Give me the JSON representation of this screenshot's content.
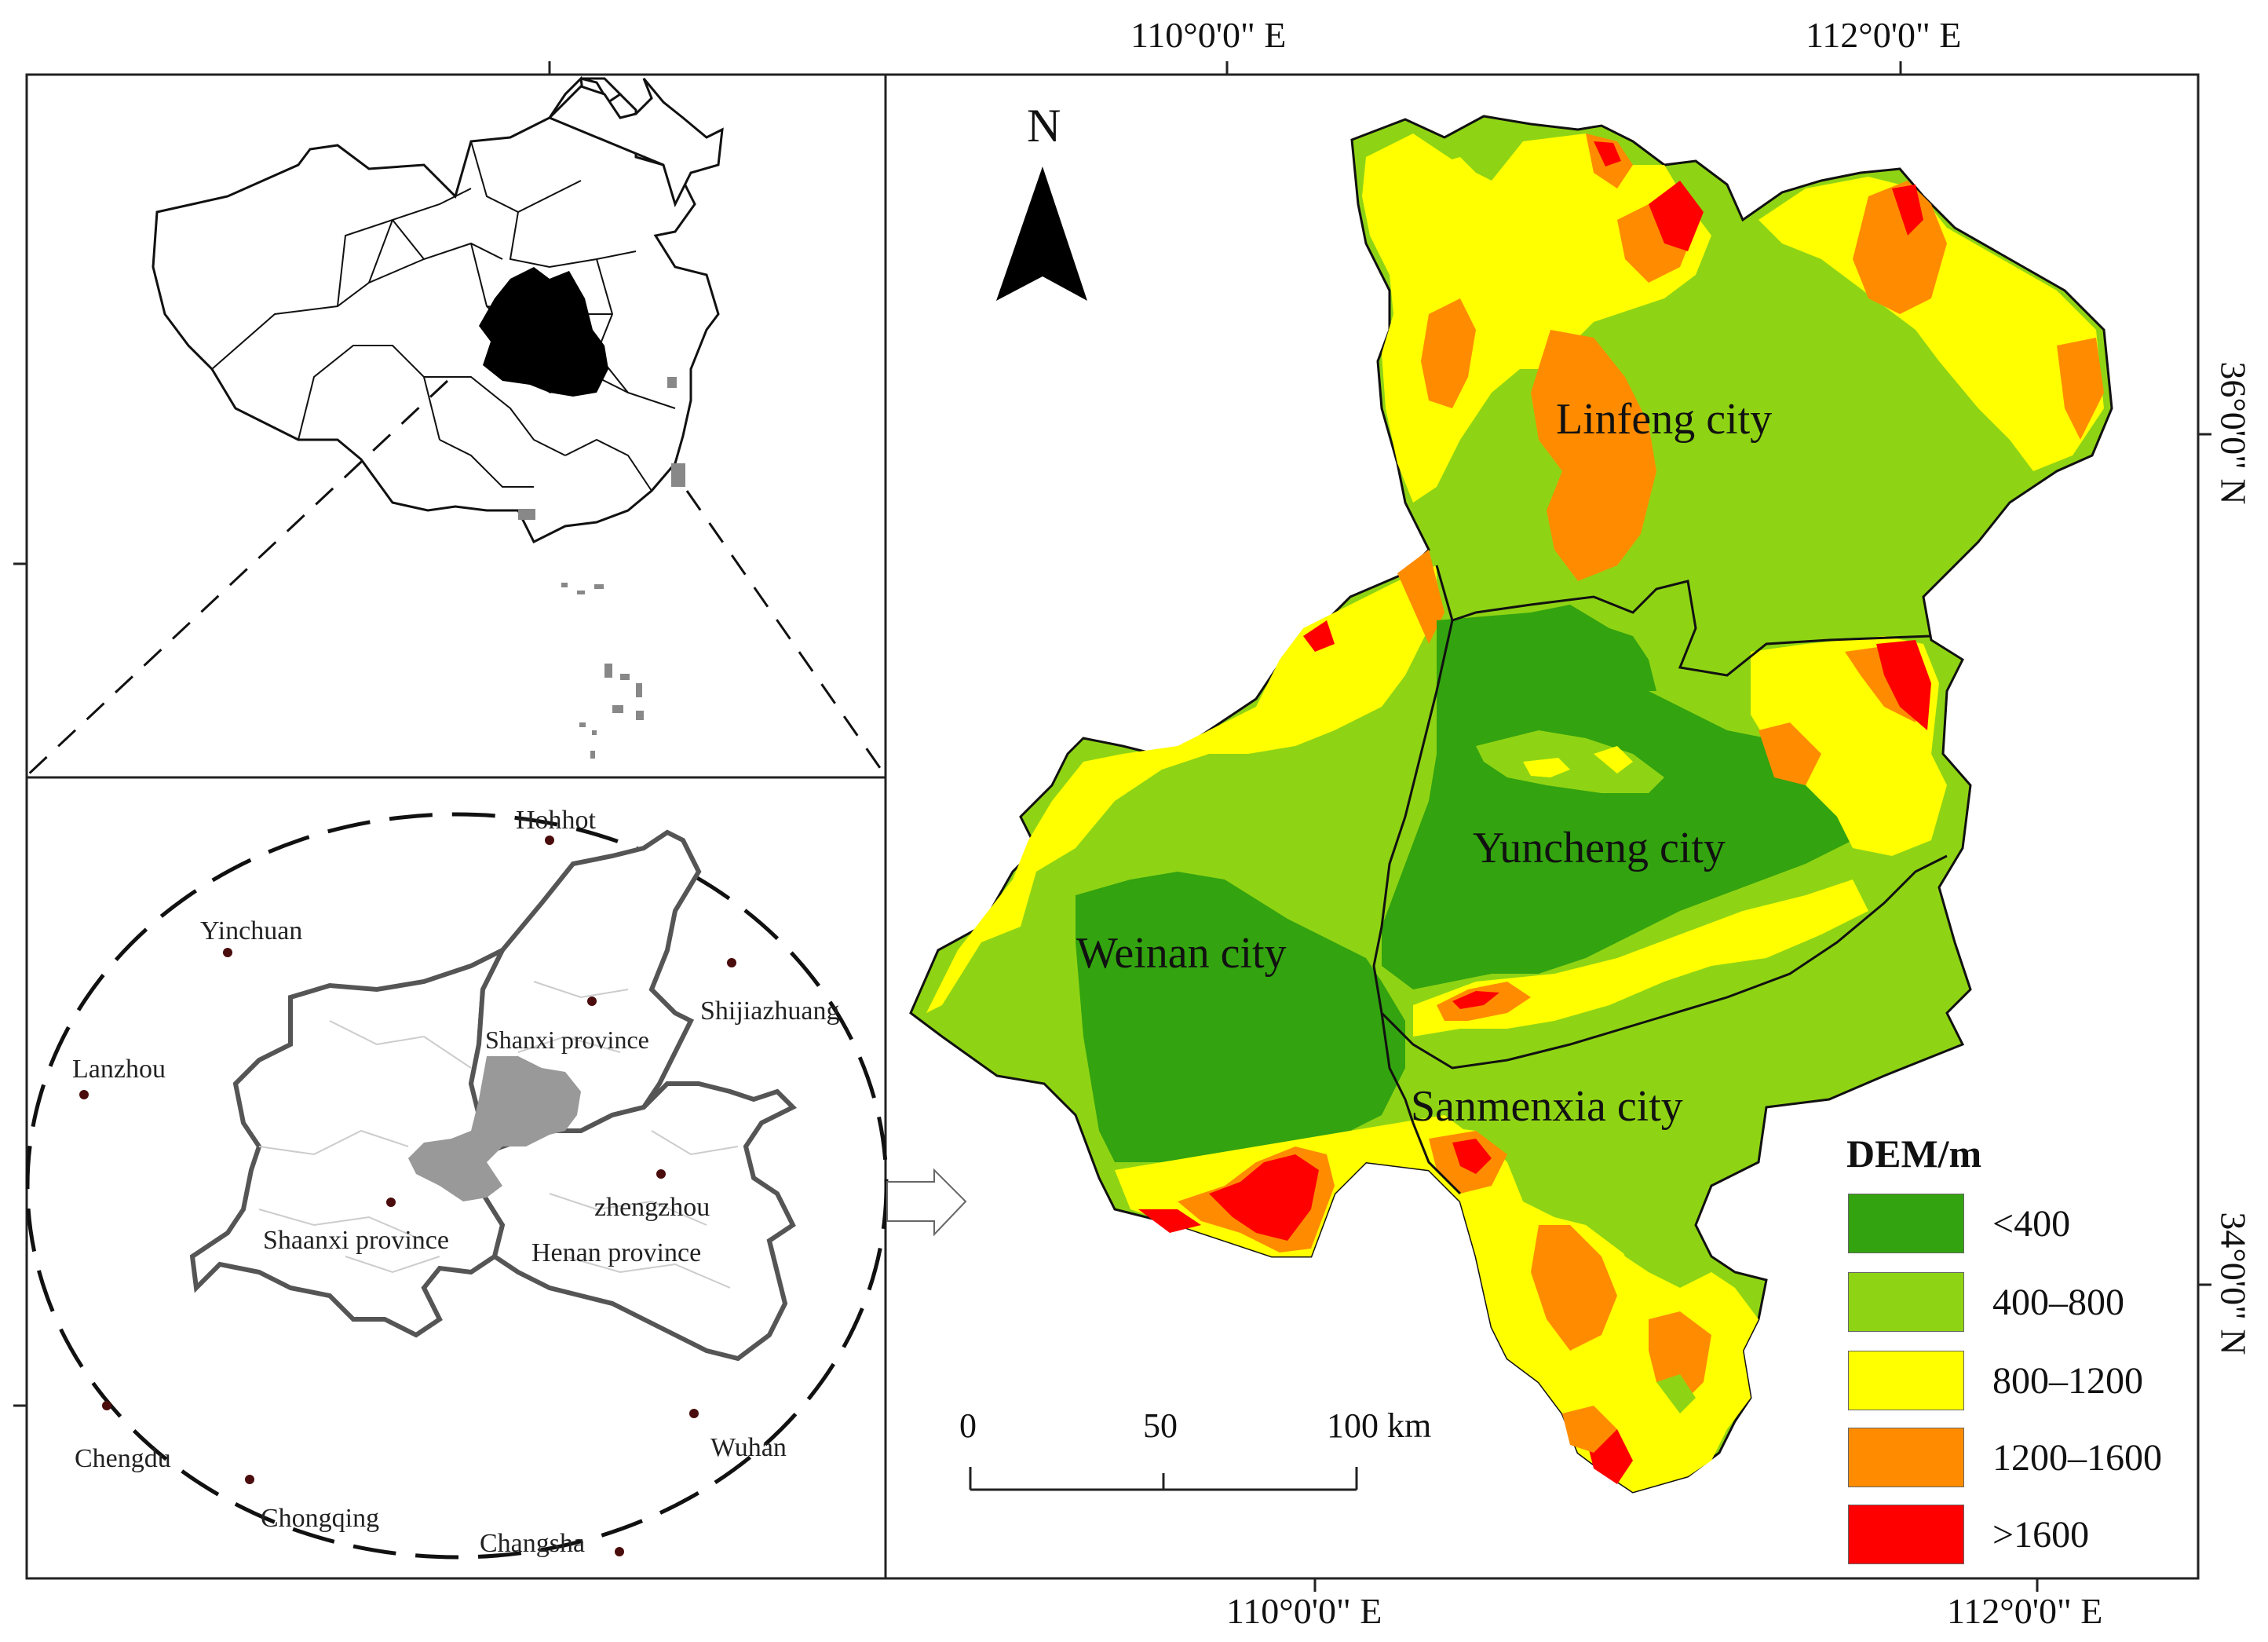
{
  "top_axis": {
    "labels": [
      "110°0'0\" E",
      "112°0'0\" E"
    ]
  },
  "bottom_axis": {
    "labels": [
      "110°0'0\" E",
      "112°0'0\" E"
    ]
  },
  "right_axis": {
    "labels": [
      "36°0'0\" N",
      "34°0'0\" N"
    ]
  },
  "north_arrow": {
    "label": "N"
  },
  "main_map": {
    "cities": [
      "Linfeng city",
      "Yuncheng city",
      "Weinan city",
      "Sanmenxia city"
    ]
  },
  "legend": {
    "title": "DEM/m",
    "items": [
      {
        "label": "<400",
        "color": "#33a30f"
      },
      {
        "label": "400–800",
        "color": "#8fd414"
      },
      {
        "label": "800–1200",
        "color": "#ffff00"
      },
      {
        "label": "1200–1600",
        "color": "#ff8c00"
      },
      {
        "label": ">1600",
        "color": "#ff0000"
      }
    ]
  },
  "scale_bar": {
    "labels": [
      "0",
      "50",
      "100 km"
    ]
  },
  "inset_region": {
    "cities": [
      "Hohhot",
      "Yinchuan",
      "Shijiazhuang",
      "Lanzhou",
      "zhengzhou",
      "Chengdu",
      "Wuhan",
      "Chongqing",
      "Changsha"
    ],
    "provinces": [
      "Shanxi province",
      "Shaanxi province",
      "Henan province"
    ]
  }
}
